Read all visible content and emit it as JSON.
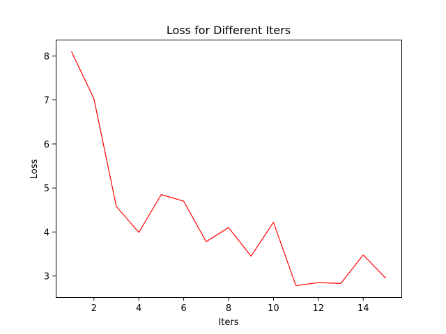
{
  "chart_data": {
    "type": "line",
    "title": "Loss for Different Iters",
    "xlabel": "Iters",
    "ylabel": "Loss",
    "xlim": [
      0.3,
      15.7
    ],
    "ylim": [
      2.52,
      8.37
    ],
    "xticks": [
      2,
      4,
      6,
      8,
      10,
      12,
      14
    ],
    "yticks": [
      3,
      4,
      5,
      6,
      7,
      8
    ],
    "grid": false,
    "series": [
      {
        "color": "#ff0000",
        "x": [
          1,
          2,
          3,
          4,
          5,
          6,
          7,
          8,
          9,
          10,
          11,
          12,
          13,
          14,
          15
        ],
        "y": [
          8.1,
          7.03,
          4.58,
          3.99,
          4.85,
          4.7,
          3.78,
          4.1,
          3.45,
          4.22,
          2.78,
          2.85,
          2.83,
          3.48,
          2.95
        ]
      }
    ]
  }
}
